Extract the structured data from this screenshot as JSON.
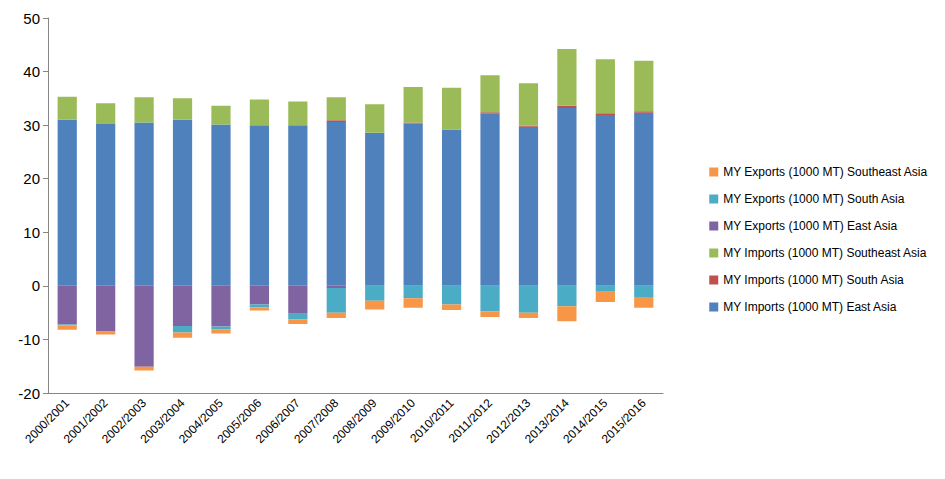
{
  "chart_data": {
    "type": "bar",
    "stacked": true,
    "grid": false,
    "legend": "right",
    "categories": [
      "2000/2001",
      "2001/2002",
      "2002/2003",
      "2003/2004",
      "2004/2005",
      "2005/2006",
      "2006/2007",
      "2007/2008",
      "2008/2009",
      "2009/2010",
      "2010/2011",
      "2011/2012",
      "2012/2013",
      "2013/2014",
      "2014/2015",
      "2015/2016"
    ],
    "ylim": [
      -20,
      50
    ],
    "yticks": [
      -20,
      -10,
      0,
      10,
      20,
      30,
      40,
      50
    ],
    "series": [
      {
        "name": "MY Exports (1000 MT) Southeast Asia",
        "color": "#F79646",
        "values": [
          -0.8,
          -0.6,
          -0.7,
          -1.0,
          -0.8,
          -0.6,
          -0.8,
          -1.0,
          -1.6,
          -1.8,
          -1.0,
          -1.0,
          -1.0,
          -2.8,
          -1.9,
          -2.0
        ]
      },
      {
        "name": "MY Exports (1000 MT) South Asia",
        "color": "#4BACC6",
        "values": [
          -0.2,
          0,
          0,
          -1.2,
          -0.5,
          -0.5,
          -1.1,
          -4.6,
          -2.8,
          -2.3,
          -3.5,
          -4.8,
          -5.0,
          -3.8,
          -1.1,
          -2.1
        ]
      },
      {
        "name": "MY Exports (1000 MT) East Asia",
        "color": "#8064A2",
        "values": [
          -7.2,
          -8.5,
          -15.1,
          -7.5,
          -7.6,
          -3.5,
          -5.2,
          -0.4,
          0,
          0,
          0,
          0,
          0,
          0,
          0,
          0
        ]
      },
      {
        "name": "MY Imports (1000 MT) Southeast Asia",
        "color": "#9BBB59",
        "values": [
          4.3,
          3.9,
          4.7,
          4.0,
          3.5,
          4.8,
          4.4,
          4.3,
          5.3,
          6.6,
          7.8,
          6.9,
          7.9,
          10.6,
          10.1,
          9.4
        ]
      },
      {
        "name": "MY Imports (1000 MT) South Asia",
        "color": "#C0504D",
        "values": [
          0,
          0,
          0,
          0,
          0,
          0,
          0,
          0.3,
          0,
          0.2,
          0,
          0.2,
          0.2,
          0.4,
          0.3,
          0.3
        ]
      },
      {
        "name": "MY Imports (1000 MT) East Asia",
        "color": "#4F81BD",
        "values": [
          31.0,
          30.2,
          30.5,
          31.0,
          30.1,
          30.0,
          30.0,
          30.6,
          28.6,
          30.3,
          29.2,
          32.2,
          29.7,
          33.2,
          31.9,
          32.3
        ]
      }
    ]
  }
}
